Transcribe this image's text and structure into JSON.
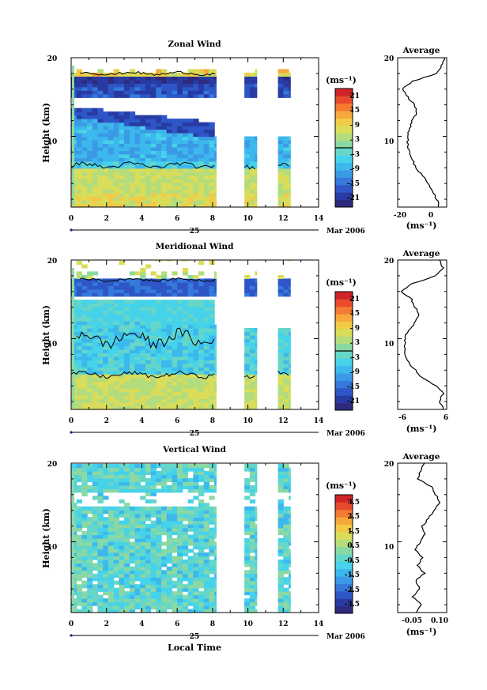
{
  "x_axis": {
    "label": "Local Time",
    "ticks": [
      "0",
      "2",
      "4",
      "6",
      "8",
      "10",
      "12",
      "14"
    ],
    "date_tick": "25",
    "date_label": "Mar 2006",
    "range": [
      0,
      14
    ]
  },
  "y_axis": {
    "label": "Height (km)",
    "ticks": [
      "10",
      "20"
    ],
    "range": [
      1,
      20
    ]
  },
  "colorbar_unit": "(ms⁻¹)",
  "profile_title": "Average",
  "profile_unit": "(ms⁻¹)",
  "colors": {
    "palette": [
      "#2d2a7c",
      "#283ba3",
      "#2e56c6",
      "#3579db",
      "#3b9ae6",
      "#3cb8ec",
      "#46d2e9",
      "#66d6c9",
      "#8ad9a4",
      "#b3dc7c",
      "#d9dd5a",
      "#f1cb46",
      "#f7a83b",
      "#f47b31",
      "#e84b2c",
      "#d02527"
    ],
    "zero_contour": "#000000"
  },
  "panels": [
    {
      "title": "Zonal Wind",
      "colorbar_ticks": [
        "21",
        "15",
        "9",
        "3",
        "-3",
        "-9",
        "-15",
        "-21"
      ],
      "profile_xticks": [
        "-20",
        "0"
      ],
      "profile_yticks": [
        "10",
        "20"
      ]
    },
    {
      "title": "Meridional Wind",
      "colorbar_ticks": [
        "21",
        "15",
        "9",
        "3",
        "-3",
        "-9",
        "-15",
        "-21"
      ],
      "profile_xticks": [
        "-6",
        "6"
      ],
      "profile_yticks": [
        "10",
        "20"
      ]
    },
    {
      "title": "Vertical Wind",
      "colorbar_ticks": [
        "3.5",
        "2.5",
        "1.5",
        "0.5",
        "-0.5",
        "-1.5",
        "-2.5",
        "-3.5"
      ],
      "profile_xticks": [
        "-0.05",
        "0.10"
      ],
      "profile_yticks": [
        "10",
        "20"
      ]
    }
  ],
  "chart_data": [
    {
      "type": "heatmap",
      "title": "Zonal Wind",
      "xlabel": "Local Time",
      "ylabel": "Height (km)",
      "xlim": [
        0,
        14
      ],
      "ylim": [
        1,
        20
      ],
      "colorbar": {
        "unit": "ms-1",
        "range": [
          -24,
          24
        ],
        "ticks": [
          21,
          15,
          9,
          3,
          -3,
          -9,
          -15,
          -21
        ]
      },
      "data_time_ranges": [
        [
          0,
          8.2
        ],
        [
          9.8,
          10.5
        ],
        [
          11.7,
          12.4
        ]
      ],
      "description_of_field": [
        {
          "height_range": [
            1,
            5
          ],
          "value": 6
        },
        {
          "height_range": [
            5,
            10
          ],
          "value": -6
        },
        {
          "height_range": [
            10,
            13
          ],
          "value": -15
        },
        {
          "height_range": [
            15,
            17
          ],
          "value": -21
        },
        {
          "height_range": [
            17,
            18.5
          ],
          "value": 6
        }
      ],
      "average_profile": {
        "xlim": [
          -30,
          10
        ],
        "height": [
          1,
          2,
          3,
          4,
          5,
          6,
          7,
          8,
          9,
          10,
          11,
          12,
          13,
          14,
          15,
          16,
          17,
          18,
          19,
          20
        ],
        "value": [
          4,
          2,
          -1,
          -5,
          -10,
          -15,
          -18,
          -20,
          -22,
          -22,
          -20,
          -18,
          -14,
          -16,
          -22,
          -26,
          -18,
          2,
          6,
          8
        ]
      }
    },
    {
      "type": "heatmap",
      "title": "Meridional Wind",
      "xlabel": "Local Time",
      "ylabel": "Height (km)",
      "xlim": [
        0,
        14
      ],
      "ylim": [
        1,
        20
      ],
      "colorbar": {
        "unit": "ms-1",
        "range": [
          -24,
          24
        ],
        "ticks": [
          21,
          15,
          9,
          3,
          -3,
          -9,
          -15,
          -21
        ]
      },
      "data_time_ranges": [
        [
          0,
          8.2
        ],
        [
          9.8,
          10.5
        ],
        [
          11.7,
          12.4
        ]
      ],
      "description_of_field": [
        {
          "height_range": [
            1,
            5
          ],
          "value": 6
        },
        {
          "height_range": [
            5,
            12
          ],
          "value": -6
        },
        {
          "height_range": [
            15,
            17
          ],
          "value": -18
        }
      ],
      "average_profile": {
        "xlim": [
          -8,
          6
        ],
        "height": [
          1,
          2,
          3,
          4,
          5,
          6,
          7,
          8,
          9,
          10,
          11,
          12,
          13,
          14,
          15,
          16,
          17,
          18,
          19,
          20
        ],
        "value": [
          5,
          4,
          5,
          3,
          -1,
          -3,
          -5,
          -6,
          -6,
          -6,
          -5,
          -3,
          -2,
          -3,
          -4,
          -7,
          -4,
          3,
          5,
          4
        ]
      }
    },
    {
      "type": "heatmap",
      "title": "Vertical Wind",
      "xlabel": "Local Time",
      "ylabel": "Height (km)",
      "xlim": [
        0,
        14
      ],
      "ylim": [
        1,
        20
      ],
      "colorbar": {
        "unit": "ms-1",
        "range": [
          -4,
          4
        ],
        "ticks": [
          3.5,
          2.5,
          1.5,
          0.5,
          -0.5,
          -1.5,
          -2.5,
          -3.5
        ]
      },
      "data_time_ranges": [
        [
          0,
          8.2
        ],
        [
          9.8,
          10.5
        ],
        [
          11.7,
          12.4
        ]
      ],
      "description_of_field": [
        {
          "height_range": [
            1,
            20
          ],
          "value": -0.3
        }
      ],
      "average_profile": {
        "xlim": [
          -0.1,
          0.12
        ],
        "height": [
          1,
          2,
          3,
          4,
          5,
          6,
          7,
          8,
          9,
          10,
          11,
          12,
          13,
          14,
          15,
          16,
          17,
          18,
          19,
          20
        ],
        "value": [
          -0.02,
          0.01,
          -0.03,
          0.0,
          -0.02,
          0.02,
          -0.01,
          0.01,
          -0.02,
          0.0,
          0.02,
          0.01,
          0.04,
          0.06,
          0.09,
          0.07,
          0.05,
          -0.01,
          0.0,
          0.02
        ]
      }
    }
  ]
}
